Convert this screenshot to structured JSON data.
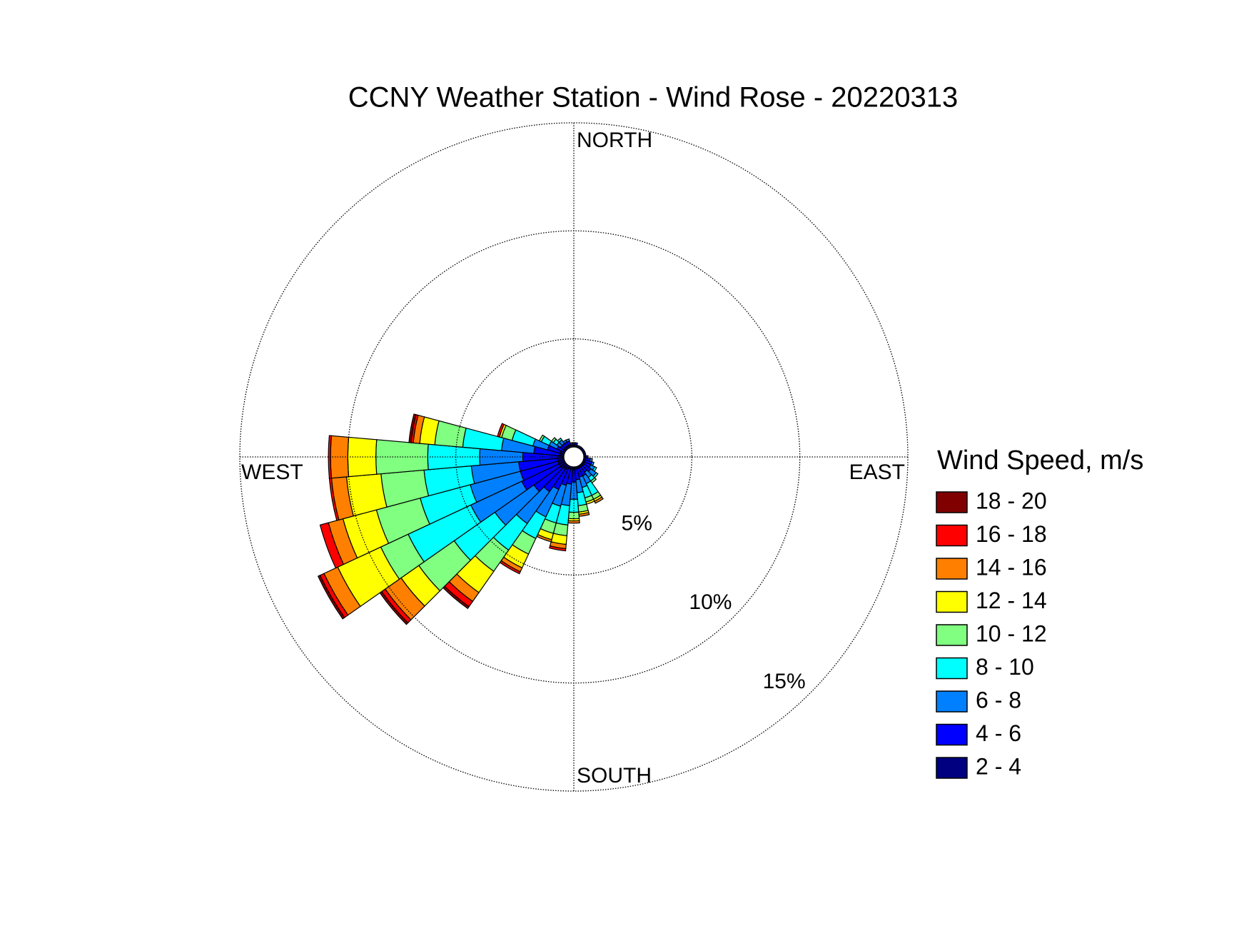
{
  "chart_data": {
    "type": "wind_rose",
    "title": "CCNY Weather Station - Wind Rose - 20220313",
    "direction_labels": [
      "NORTH",
      "EAST",
      "SOUTH",
      "WEST"
    ],
    "legend_title": "Wind Speed, m/s",
    "x": [
      0,
      10,
      20,
      30,
      40,
      50,
      60,
      70,
      80,
      90,
      100,
      110,
      120,
      130,
      140,
      150,
      160,
      170,
      180,
      190,
      200,
      210,
      220,
      230,
      240,
      250,
      260,
      270,
      280,
      290,
      300,
      310,
      320,
      330,
      340,
      350
    ],
    "rlim": [
      0,
      15
    ],
    "rticks": [
      {
        "value": 5,
        "label": "5%"
      },
      {
        "value": 10,
        "label": "10%"
      },
      {
        "value": 15,
        "label": "15%"
      }
    ],
    "grid": true,
    "series": [
      {
        "name": "2 - 4",
        "color": "#000080",
        "values": [
          0.1,
          0.1,
          0.1,
          0.1,
          0.1,
          0.1,
          0.1,
          0.1,
          0.1,
          0.1,
          0.1,
          0.1,
          0.1,
          0.1,
          0.1,
          0.1,
          0.1,
          0.1,
          0.1,
          0.1,
          0.1,
          0.2,
          0.2,
          0.3,
          0.3,
          0.3,
          0.3,
          0.3,
          0.2,
          0.2,
          0.1,
          0.1,
          0.1,
          0.1,
          0.1,
          0.1
        ]
      },
      {
        "name": "4 - 6",
        "color": "#0000ff",
        "values": [
          0.1,
          0.1,
          0,
          0,
          0,
          0,
          0,
          0,
          0,
          0.1,
          0.2,
          0.3,
          0.3,
          0.4,
          0.3,
          0.4,
          0.4,
          0.5,
          0.6,
          0.7,
          0.8,
          1.0,
          1.3,
          1.5,
          1.9,
          1.8,
          1.8,
          1.6,
          1.2,
          0.6,
          0.3,
          0.2,
          0.2,
          0.2,
          0.2,
          0.1
        ]
      },
      {
        "name": "6 - 8",
        "color": "#0080ff",
        "values": [
          0,
          0,
          0,
          0,
          0,
          0,
          0,
          0,
          0,
          0,
          0.1,
          0.1,
          0.2,
          0.3,
          0.3,
          0.4,
          0.5,
          0.6,
          0.8,
          1.0,
          1.0,
          1.4,
          1.8,
          2.2,
          2.6,
          2.4,
          2.2,
          2.0,
          1.5,
          0.7,
          0.4,
          0.2,
          0.2,
          0.1,
          0.1,
          0
        ]
      },
      {
        "name": "8 - 10",
        "color": "#00ffff",
        "values": [
          0,
          0,
          0,
          0,
          0,
          0,
          0,
          0,
          0,
          0,
          0,
          0,
          0.1,
          0.1,
          0.2,
          0.6,
          0.5,
          0.6,
          0.6,
          0.9,
          0.8,
          1.1,
          1.5,
          2.3,
          3.2,
          2.4,
          2.2,
          2.4,
          1.8,
          1.0,
          0.4,
          0.2,
          0.1,
          0,
          0,
          0
        ]
      },
      {
        "name": "10 - 12",
        "color": "#80ff80",
        "values": [
          0,
          0,
          0,
          0,
          0,
          0,
          0,
          0,
          0,
          0,
          0,
          0,
          0,
          0,
          0.1,
          0.2,
          0.2,
          0.3,
          0.3,
          0.5,
          0.5,
          0.8,
          1.2,
          2.0,
          1.4,
          2.1,
          2.0,
          2.4,
          1.3,
          0.5,
          0.1,
          0.1,
          0,
          0,
          0,
          0
        ]
      },
      {
        "name": "12 - 14",
        "color": "#ffff00",
        "values": [
          0,
          0,
          0,
          0,
          0,
          0,
          0,
          0,
          0,
          0,
          0,
          0,
          0,
          0,
          0,
          0.1,
          0.1,
          0.1,
          0.1,
          0.4,
          0.3,
          0.7,
          1.2,
          1.0,
          2.2,
          1.6,
          1.6,
          1.3,
          0.7,
          0.1,
          0,
          0,
          0,
          0,
          0,
          0
        ]
      },
      {
        "name": "14 - 16",
        "color": "#ff8000",
        "values": [
          0,
          0,
          0,
          0,
          0,
          0,
          0,
          0,
          0,
          0,
          0,
          0,
          0,
          0,
          0,
          0.1,
          0,
          0.1,
          0.1,
          0.2,
          0.1,
          0.2,
          0.5,
          0.9,
          0.7,
          0.7,
          0.7,
          0.8,
          0.3,
          0,
          0,
          0,
          0,
          0,
          0,
          0
        ]
      },
      {
        "name": "16 - 18",
        "color": "#ff0000",
        "values": [
          0,
          0,
          0,
          0,
          0,
          0,
          0,
          0,
          0,
          0,
          0,
          0,
          0,
          0,
          0,
          0,
          0,
          0,
          0,
          0.1,
          0,
          0.1,
          0.3,
          0.2,
          0.2,
          0.4,
          0.1,
          0.1,
          0.1,
          0.1,
          0,
          0,
          0,
          0,
          0,
          0
        ]
      },
      {
        "name": "18 - 20",
        "color": "#800000",
        "values": [
          0,
          0,
          0,
          0,
          0,
          0,
          0,
          0,
          0,
          0,
          0,
          0,
          0,
          0,
          0,
          0,
          0,
          0,
          0,
          0,
          0,
          0,
          0.1,
          0.1,
          0.1,
          0,
          0,
          0,
          0.1,
          0,
          0,
          0,
          0,
          0,
          0,
          0
        ]
      }
    ]
  }
}
